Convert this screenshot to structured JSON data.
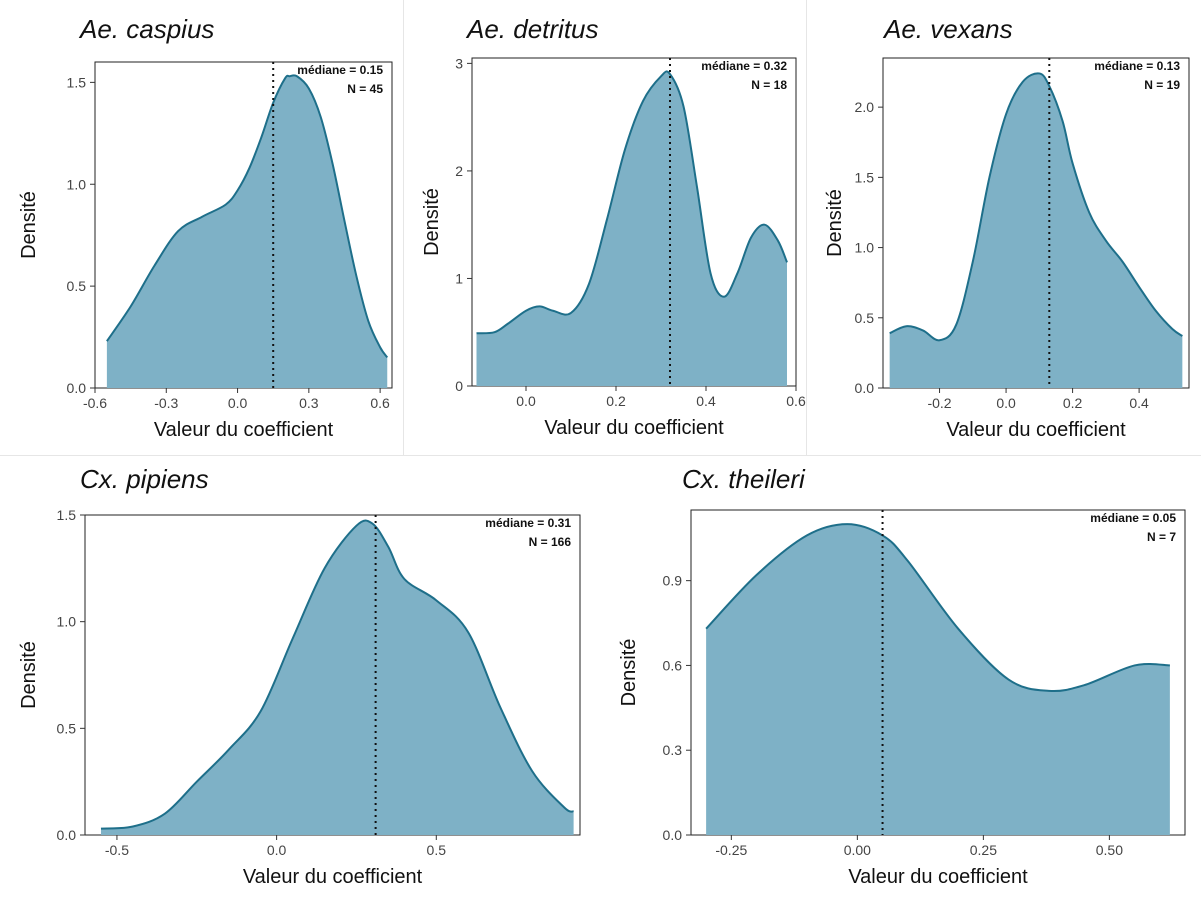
{
  "style": {
    "fill": "#7eb1c6",
    "line": "#1e6f8a",
    "median_line": "#111111"
  },
  "chart_data": [
    {
      "type": "area",
      "title": "Ae. caspius",
      "xlabel": "Valeur du coefficient",
      "ylabel": "Densité",
      "xlim": [
        -0.6,
        0.65
      ],
      "ylim": [
        0,
        1.6
      ],
      "xticks": [
        -0.6,
        -0.3,
        0.0,
        0.3,
        0.6
      ],
      "xtick_labels": [
        "-0.6",
        "-0.3",
        "0.0",
        "0.3",
        "0.6"
      ],
      "yticks": [
        0,
        0.5,
        1.0,
        1.5
      ],
      "ytick_labels": [
        "0.0",
        "0.5",
        "1.0",
        "1.5"
      ],
      "median": 0.15,
      "annotation": [
        "médiane = 0.15",
        "N = 45"
      ],
      "x": [
        -0.55,
        -0.45,
        -0.35,
        -0.25,
        -0.15,
        -0.05,
        0.0,
        0.05,
        0.1,
        0.15,
        0.2,
        0.22,
        0.25,
        0.3,
        0.35,
        0.4,
        0.45,
        0.5,
        0.55,
        0.6,
        0.63
      ],
      "y": [
        0.23,
        0.4,
        0.6,
        0.77,
        0.84,
        0.9,
        0.97,
        1.08,
        1.23,
        1.4,
        1.52,
        1.53,
        1.53,
        1.47,
        1.33,
        1.1,
        0.82,
        0.55,
        0.33,
        0.2,
        0.15
      ]
    },
    {
      "type": "area",
      "title": "Ae. detritus",
      "xlabel": "Valeur du coefficient",
      "ylabel": "Densité",
      "xlim": [
        -0.12,
        0.6
      ],
      "ylim": [
        0,
        3.05
      ],
      "xticks": [
        0.0,
        0.2,
        0.4,
        0.6
      ],
      "xtick_labels": [
        "0.0",
        "0.2",
        "0.4",
        "0.6"
      ],
      "yticks": [
        0,
        1,
        2,
        3
      ],
      "ytick_labels": [
        "0",
        "1",
        "2",
        "3"
      ],
      "median": 0.32,
      "annotation": [
        "médiane = 0.32",
        "N = 18"
      ],
      "x": [
        -0.11,
        -0.07,
        -0.04,
        0.0,
        0.03,
        0.06,
        0.1,
        0.14,
        0.18,
        0.22,
        0.26,
        0.3,
        0.32,
        0.35,
        0.38,
        0.41,
        0.44,
        0.47,
        0.5,
        0.53,
        0.56,
        0.58
      ],
      "y": [
        0.49,
        0.5,
        0.58,
        0.7,
        0.74,
        0.7,
        0.68,
        0.95,
        1.55,
        2.2,
        2.65,
        2.88,
        2.9,
        2.6,
        1.85,
        1.05,
        0.83,
        1.05,
        1.38,
        1.5,
        1.35,
        1.15
      ]
    },
    {
      "type": "area",
      "title": "Ae. vexans",
      "xlabel": "Valeur du coefficient",
      "ylabel": "Densité",
      "xlim": [
        -0.37,
        0.55
      ],
      "ylim": [
        0,
        2.35
      ],
      "xticks": [
        -0.2,
        0.0,
        0.2,
        0.4
      ],
      "xtick_labels": [
        "-0.2",
        "0.0",
        "0.2",
        "0.4"
      ],
      "yticks": [
        0,
        0.5,
        1.0,
        1.5,
        2.0
      ],
      "ytick_labels": [
        "0.0",
        "0.5",
        "1.0",
        "1.5",
        "2.0"
      ],
      "median": 0.13,
      "annotation": [
        "médiane = 0.13",
        "N = 19"
      ],
      "x": [
        -0.35,
        -0.3,
        -0.25,
        -0.2,
        -0.15,
        -0.1,
        -0.05,
        0.0,
        0.05,
        0.1,
        0.13,
        0.17,
        0.2,
        0.25,
        0.3,
        0.35,
        0.4,
        0.45,
        0.5,
        0.53
      ],
      "y": [
        0.39,
        0.44,
        0.41,
        0.34,
        0.45,
        0.9,
        1.5,
        1.95,
        2.18,
        2.24,
        2.15,
        1.9,
        1.6,
        1.25,
        1.05,
        0.9,
        0.72,
        0.55,
        0.42,
        0.37
      ]
    },
    {
      "type": "area",
      "title": "Cx. pipiens",
      "xlabel": "Valeur du coefficient",
      "ylabel": "Densité",
      "xlim": [
        -0.6,
        0.95
      ],
      "ylim": [
        0,
        1.5
      ],
      "xticks": [
        -0.5,
        0.0,
        0.5
      ],
      "xtick_labels": [
        "-0.5",
        "0.0",
        "0.5"
      ],
      "yticks": [
        0,
        0.5,
        1.0,
        1.5
      ],
      "ytick_labels": [
        "0.0",
        "0.5",
        "1.0",
        "1.5"
      ],
      "median": 0.31,
      "annotation": [
        "médiane = 0.31",
        "N = 166"
      ],
      "x": [
        -0.55,
        -0.45,
        -0.35,
        -0.25,
        -0.15,
        -0.05,
        0.05,
        0.15,
        0.25,
        0.3,
        0.35,
        0.4,
        0.5,
        0.6,
        0.7,
        0.8,
        0.9,
        0.93
      ],
      "y": [
        0.03,
        0.04,
        0.1,
        0.25,
        0.4,
        0.58,
        0.92,
        1.25,
        1.45,
        1.46,
        1.35,
        1.2,
        1.1,
        0.95,
        0.6,
        0.3,
        0.13,
        0.11
      ]
    },
    {
      "type": "area",
      "title": "Cx. theileri",
      "xlabel": "Valeur du coefficient",
      "ylabel": "Densité",
      "xlim": [
        -0.33,
        0.65
      ],
      "ylim": [
        0,
        1.15
      ],
      "xticks": [
        -0.25,
        0.0,
        0.25,
        0.5
      ],
      "xtick_labels": [
        "-0.25",
        "0.00",
        "0.25",
        "0.50"
      ],
      "yticks": [
        0,
        0.3,
        0.6,
        0.9
      ],
      "ytick_labels": [
        "0.0",
        "0.3",
        "0.6",
        "0.9"
      ],
      "median": 0.05,
      "annotation": [
        "médiane = 0.05",
        "N = 7"
      ],
      "x": [
        -0.3,
        -0.2,
        -0.1,
        -0.02,
        0.05,
        0.1,
        0.2,
        0.3,
        0.38,
        0.45,
        0.55,
        0.62
      ],
      "y": [
        0.73,
        0.92,
        1.06,
        1.1,
        1.06,
        0.97,
        0.73,
        0.55,
        0.51,
        0.53,
        0.6,
        0.6
      ]
    }
  ]
}
